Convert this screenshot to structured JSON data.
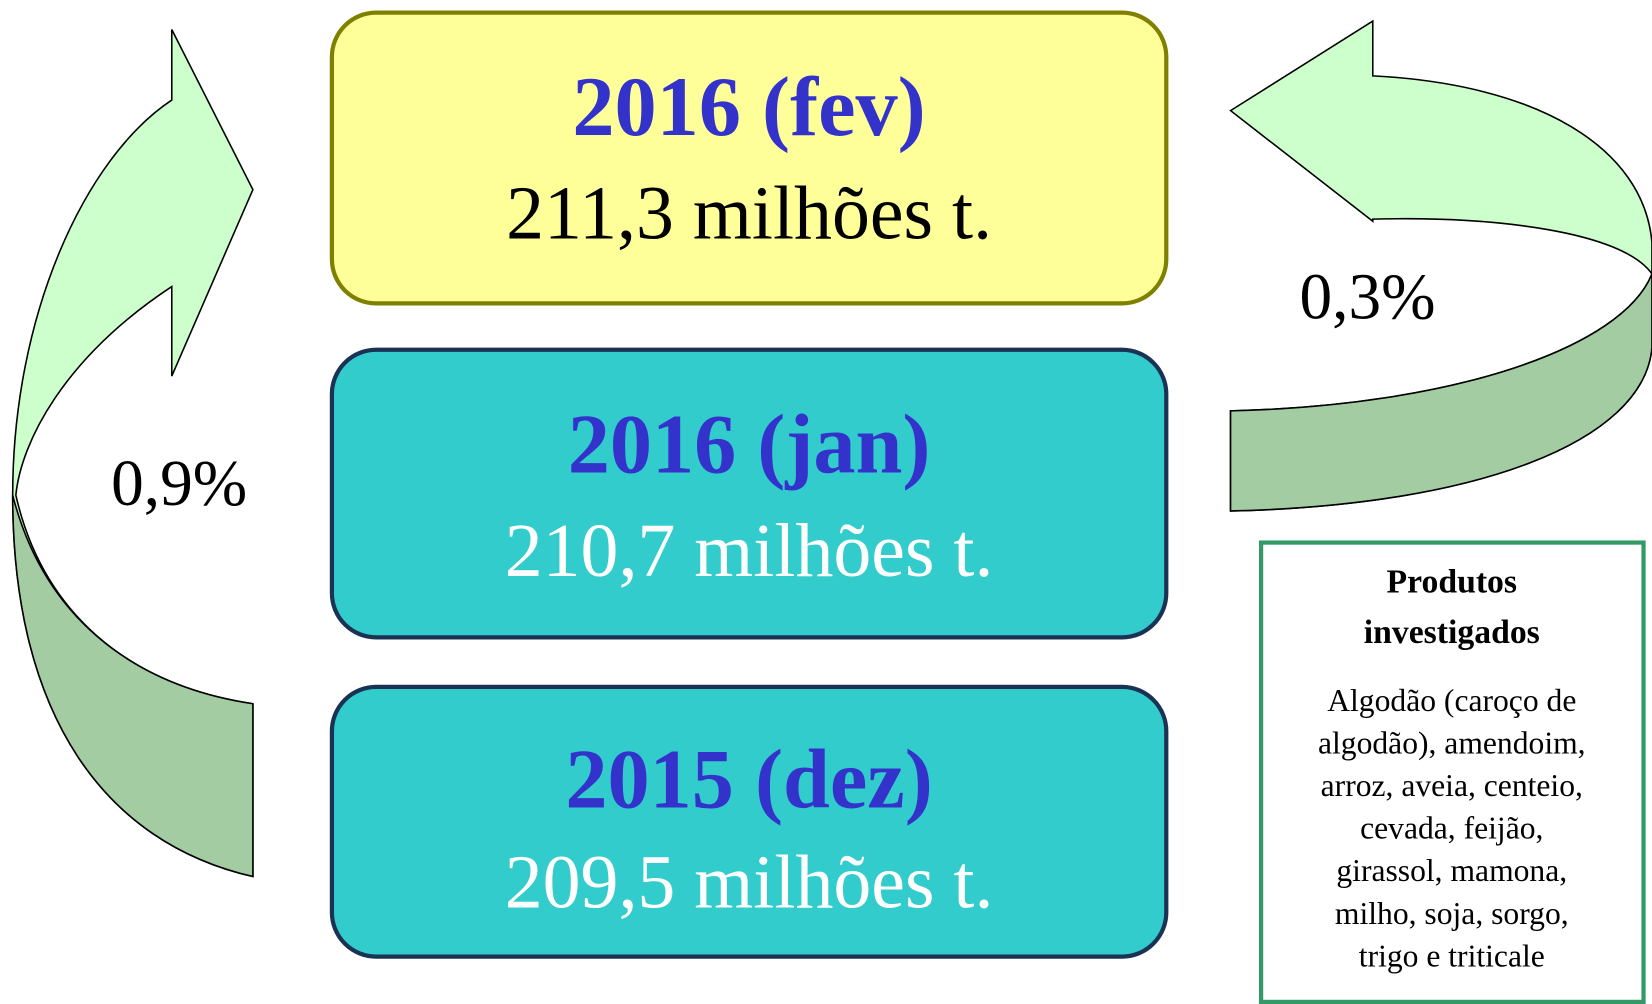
{
  "boxes": [
    {
      "title": "2016 (fev)",
      "value": "211,3 milhões t."
    },
    {
      "title": "2016 (jan)",
      "value": "210,7 milhões t."
    },
    {
      "title": "2015 (dez)",
      "value": "209,5 milhões t."
    }
  ],
  "changes": {
    "left": "0,9%",
    "right": "0,3%"
  },
  "products": {
    "title": [
      "Produtos",
      "investigados"
    ],
    "lines": [
      "Algodão (caroço de",
      "algodão), amendoim,",
      "arroz, aveia, centeio,",
      "cevada, feijão,",
      "girassol, mamona,",
      "milho, soja, sorgo,",
      "trigo e triticale"
    ]
  }
}
